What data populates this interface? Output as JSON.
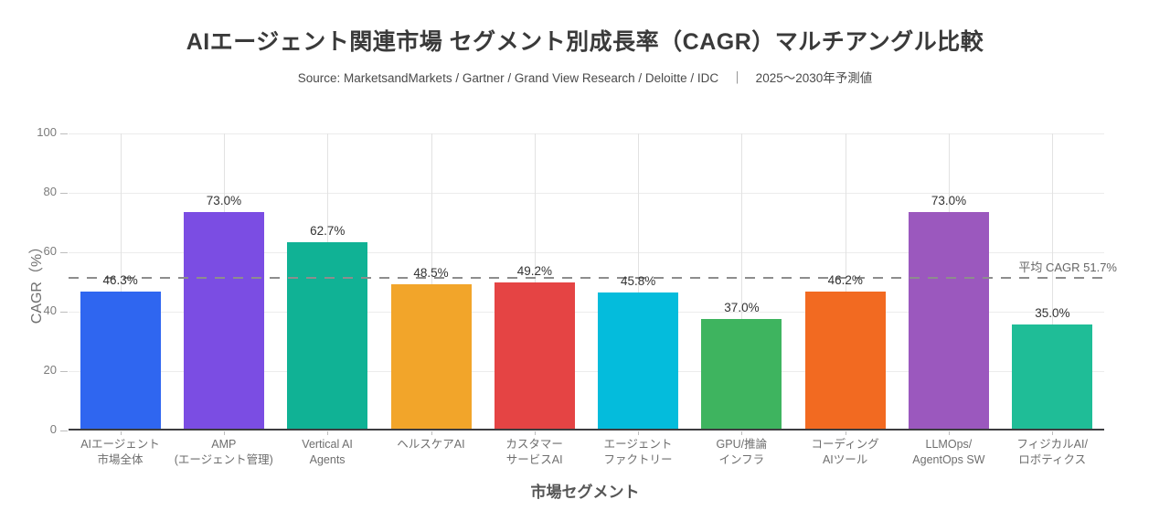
{
  "chart_data": {
    "type": "bar",
    "title": "AIエージェント関連市場 セグメント別成長率（CAGR）マルチアングル比較",
    "subtitle": "Source: MarketsandMarkets / Gartner / Grand View Research / Deloitte / IDC　｜　2025〜2030年予測値",
    "xlabel": "市場セグメント",
    "ylabel": "CAGR（%）",
    "ylim": [
      0,
      100
    ],
    "yticks": [
      0,
      20,
      40,
      60,
      80,
      100
    ],
    "grid": {
      "horizontal": true,
      "vertical": true
    },
    "legend": "none",
    "categories": [
      [
        "AIエージェント",
        "市場全体"
      ],
      [
        "AMP",
        "(エージェント管理)"
      ],
      [
        "Vertical AI",
        "Agents"
      ],
      [
        "ヘルスケアAI"
      ],
      [
        "カスタマー",
        "サービスAI"
      ],
      [
        "エージェント",
        "ファクトリー"
      ],
      [
        "GPU/推論",
        "インフラ"
      ],
      [
        "コーディング",
        "AIツール"
      ],
      [
        "LLMOps/",
        "AgentOps SW"
      ],
      [
        "フィジカルAI/",
        "ロボティクス"
      ]
    ],
    "values": [
      46.3,
      73.0,
      62.7,
      48.5,
      49.2,
      45.8,
      37.0,
      46.2,
      73.0,
      35.0
    ],
    "value_labels": [
      "46.3%",
      "73.0%",
      "62.7%",
      "48.5%",
      "49.2%",
      "45.8%",
      "37.0%",
      "46.2%",
      "73.0%",
      "35.0%"
    ],
    "bar_colors": [
      "#2F66F0",
      "#7B4DE3",
      "#10B295",
      "#F2A52A",
      "#E54444",
      "#04BCDC",
      "#3EB45F",
      "#F26A21",
      "#9B58BE",
      "#1FBD97"
    ],
    "average_line": {
      "value": 51.7,
      "label": "平均 CAGR 51.7%",
      "color": "#8d8d8d",
      "style": "dashed"
    }
  }
}
